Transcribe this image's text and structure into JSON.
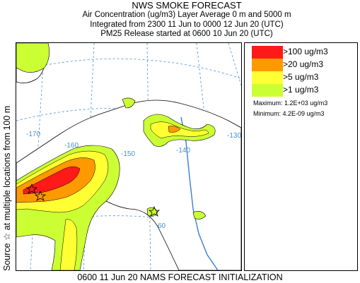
{
  "header": {
    "title": "NWS SMOKE FORECAST",
    "line1": "Air Concentration (ug/m3) Layer Average    0 m and  5000 m",
    "line2": "Integrated from 2300 11 Jun to 0000 12 Jun 20 (UTC)",
    "line3": "PM25 Release started at 0600 10 Jun 20 (UTC)"
  },
  "side_label": "Source ☆  at multiple locations   from  100 m",
  "map": {
    "longitude_labels": [
      "-170",
      "-160",
      "-150",
      "-140",
      "-130",
      "60"
    ],
    "colors": {
      "red": "#ff1a1a",
      "orange": "#ff9900",
      "yellow": "#ffff33",
      "green": "#ccff33",
      "graticule": "#4a8fd0",
      "border": "#3a7fc8",
      "coast": "#000000"
    }
  },
  "legend": {
    "items": [
      {
        "label": ">100 ug/m3",
        "color": "#ff1a1a"
      },
      {
        "label": ">20 ug/m3",
        "color": "#ff9900"
      },
      {
        "label": ">5 ug/m3",
        "color": "#ffff33"
      },
      {
        "label": ">1 ug/m3",
        "color": "#ccff33"
      }
    ],
    "maximum": "Maximum: 1.2E+03 ug/m3",
    "minimum": "Minimum: 4.2E-09 ug/m3"
  },
  "footer": "0600 11 Jun 20 NAMS FORECAST INITIALIZATION"
}
